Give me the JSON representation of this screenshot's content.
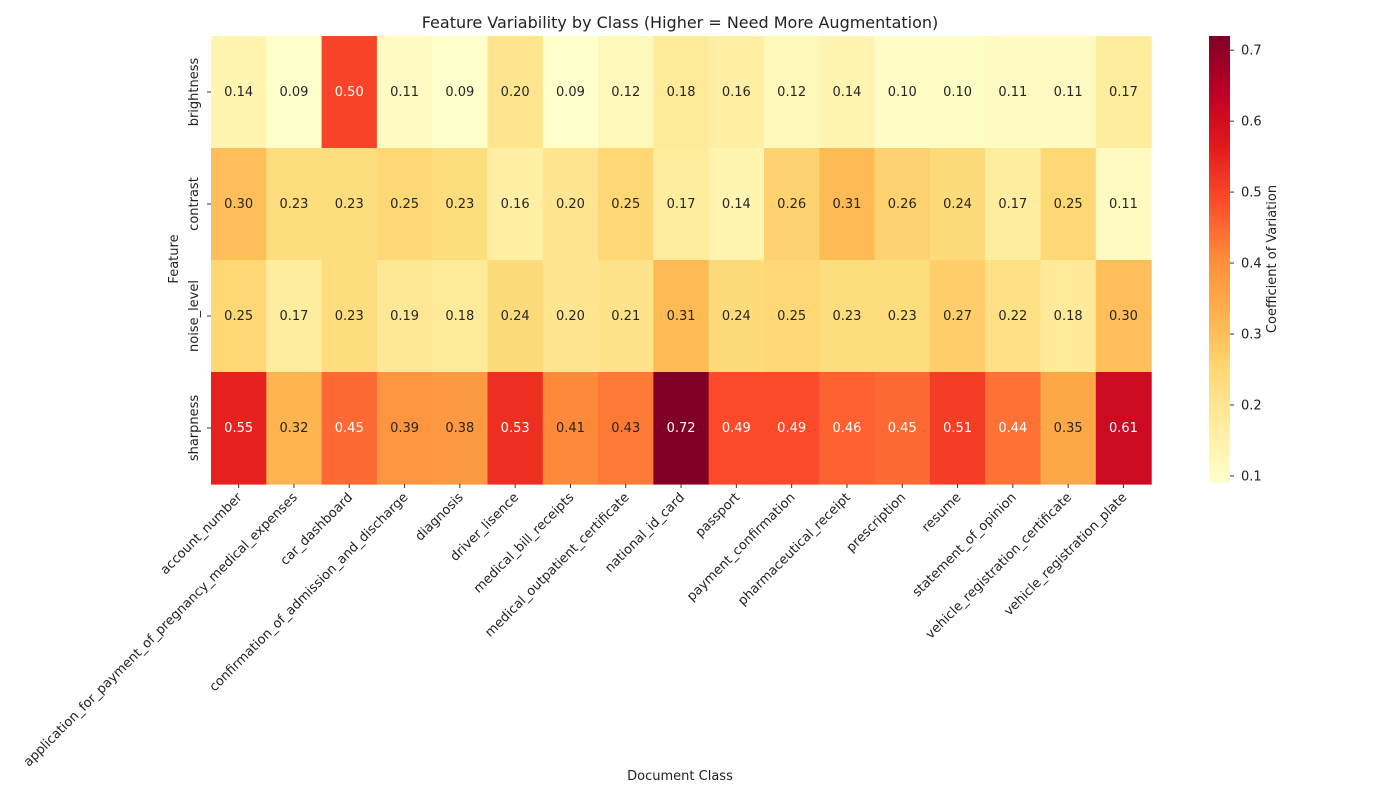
{
  "chart_data": {
    "type": "heatmap",
    "title": "Feature Variability by Class (Higher = Need More Augmentation)",
    "xlabel": "Document Class",
    "ylabel": "Feature",
    "colorbar_label": "Coefficient of Variation",
    "colormap": "YlOrRd",
    "color_range": [
      0.09,
      0.72
    ],
    "colorbar_ticks": [
      "0.1",
      "0.2",
      "0.3",
      "0.4",
      "0.5",
      "0.6",
      "0.7"
    ],
    "rows": [
      "brightness",
      "contrast",
      "noise_level",
      "sharpness"
    ],
    "columns": [
      "account_number",
      "application_for_payment_of_pregnancy_medical_expenses",
      "car_dashboard",
      "confirmation_of_admission_and_discharge",
      "diagnosis",
      "driver_lisence",
      "medical_bill_receipts",
      "medical_outpatient_certificate",
      "national_id_card",
      "passport",
      "payment_confirmation",
      "pharmaceutical_receipt",
      "prescription",
      "resume",
      "statement_of_opinion",
      "vehicle_registration_certificate",
      "vehicle_registration_plate"
    ],
    "values": [
      [
        0.14,
        0.09,
        0.5,
        0.11,
        0.09,
        0.2,
        0.09,
        0.12,
        0.18,
        0.16,
        0.12,
        0.14,
        0.1,
        0.1,
        0.11,
        0.11,
        0.17
      ],
      [
        0.3,
        0.23,
        0.23,
        0.25,
        0.23,
        0.16,
        0.2,
        0.25,
        0.17,
        0.14,
        0.26,
        0.31,
        0.26,
        0.24,
        0.17,
        0.25,
        0.11
      ],
      [
        0.25,
        0.17,
        0.23,
        0.19,
        0.18,
        0.24,
        0.2,
        0.21,
        0.31,
        0.24,
        0.25,
        0.23,
        0.23,
        0.27,
        0.22,
        0.18,
        0.3
      ],
      [
        0.55,
        0.32,
        0.45,
        0.39,
        0.38,
        0.53,
        0.41,
        0.43,
        0.72,
        0.49,
        0.49,
        0.46,
        0.45,
        0.51,
        0.44,
        0.35,
        0.61
      ]
    ]
  }
}
